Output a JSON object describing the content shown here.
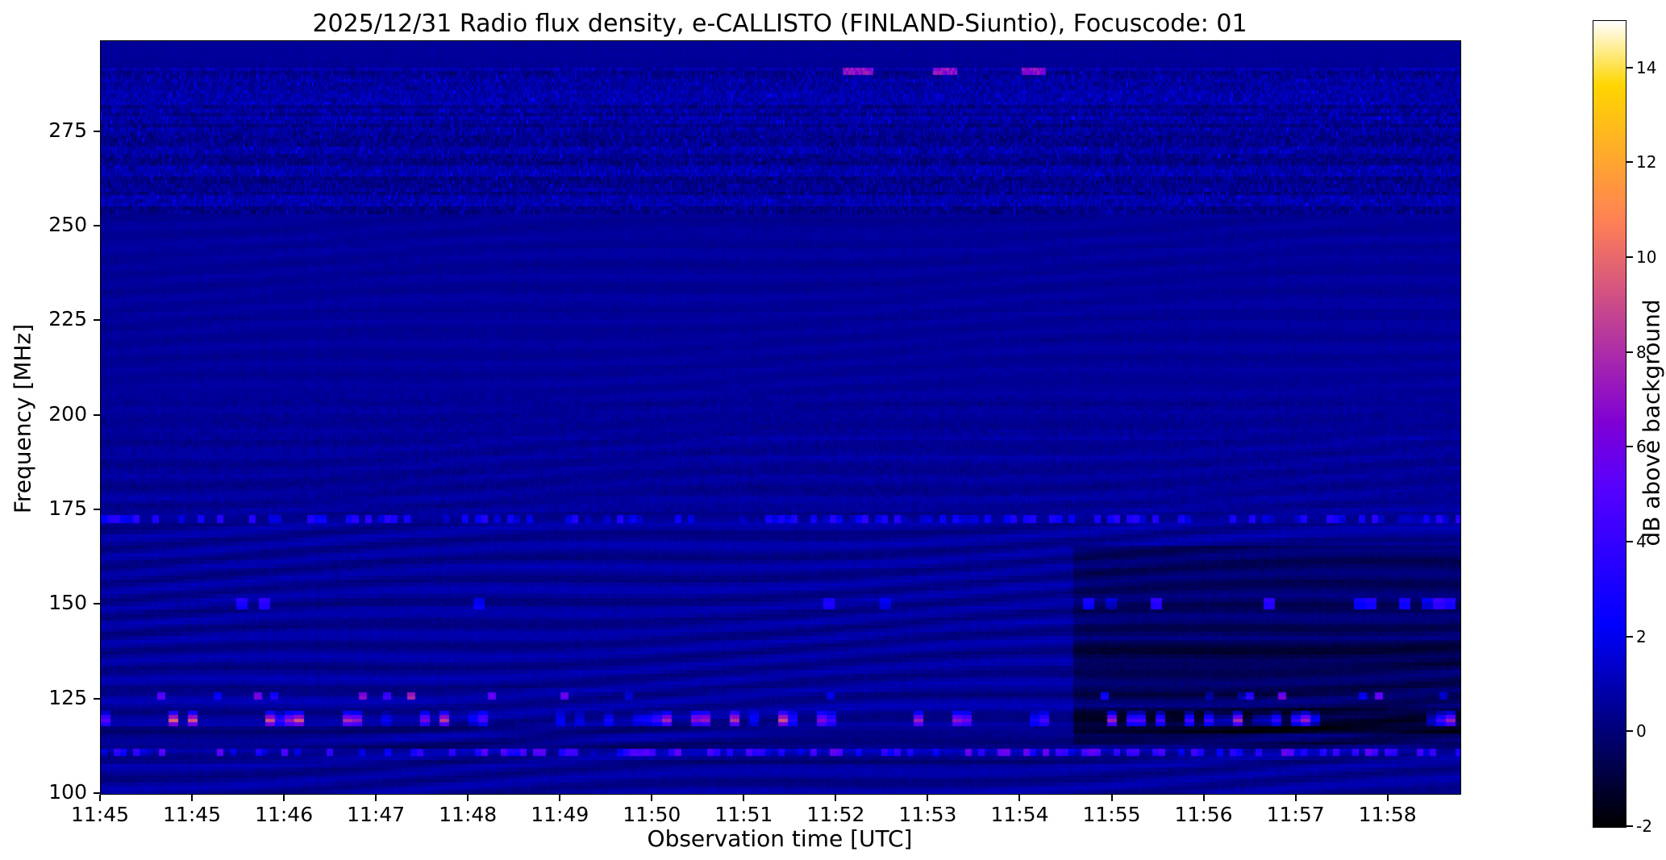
{
  "chart_data": {
    "type": "heatmap",
    "title": "2025/12/31  Radio flux density, e-CALLISTO (FINLAND-Siuntio), Focuscode: 01",
    "xlabel": "Observation time [UTC]",
    "ylabel": "Frequency [MHz]",
    "x_tick_labels": [
      "11:45",
      "11:45",
      "11:46",
      "11:47",
      "11:48",
      "11:49",
      "11:50",
      "11:51",
      "11:52",
      "11:53",
      "11:54",
      "11:55",
      "11:56",
      "11:57",
      "11:58"
    ],
    "y_tick_values": [
      275,
      250,
      225,
      200,
      175,
      150,
      125,
      100
    ],
    "freq_range_mhz": [
      100,
      299
    ],
    "time_span_seconds": 887,
    "time_ticks_every_seconds": 60,
    "colorbar": {
      "label": "dB above background",
      "min": -2,
      "max": 15,
      "tick_values": [
        14,
        12,
        10,
        8,
        6,
        4,
        2,
        0,
        -2
      ],
      "colormap": "gnuplot2"
    },
    "features": {
      "background_db": 0.55,
      "ripple_bands_mhz": [
        [
          100,
          172
        ],
        [
          195,
          253
        ]
      ],
      "noisy_speckle_band_mhz": [
        253,
        292
      ],
      "rfi_lines_mhz": [
        111,
        119.5,
        126,
        150,
        173
      ],
      "bright_bursts_291mhz": [
        {
          "freq_mhz": 291,
          "time_frac": [
            0.545,
            0.568
          ],
          "db": 6.8
        },
        {
          "freq_mhz": 291,
          "time_frac": [
            0.612,
            0.629
          ],
          "db": 6.8
        },
        {
          "freq_mhz": 291,
          "time_frac": [
            0.677,
            0.694
          ],
          "db": 6.8
        }
      ],
      "attenuated_region": {
        "time_frac_start": 0.715,
        "freq_mhz": [
          113,
          166
        ],
        "db_offset": -0.8
      }
    }
  }
}
